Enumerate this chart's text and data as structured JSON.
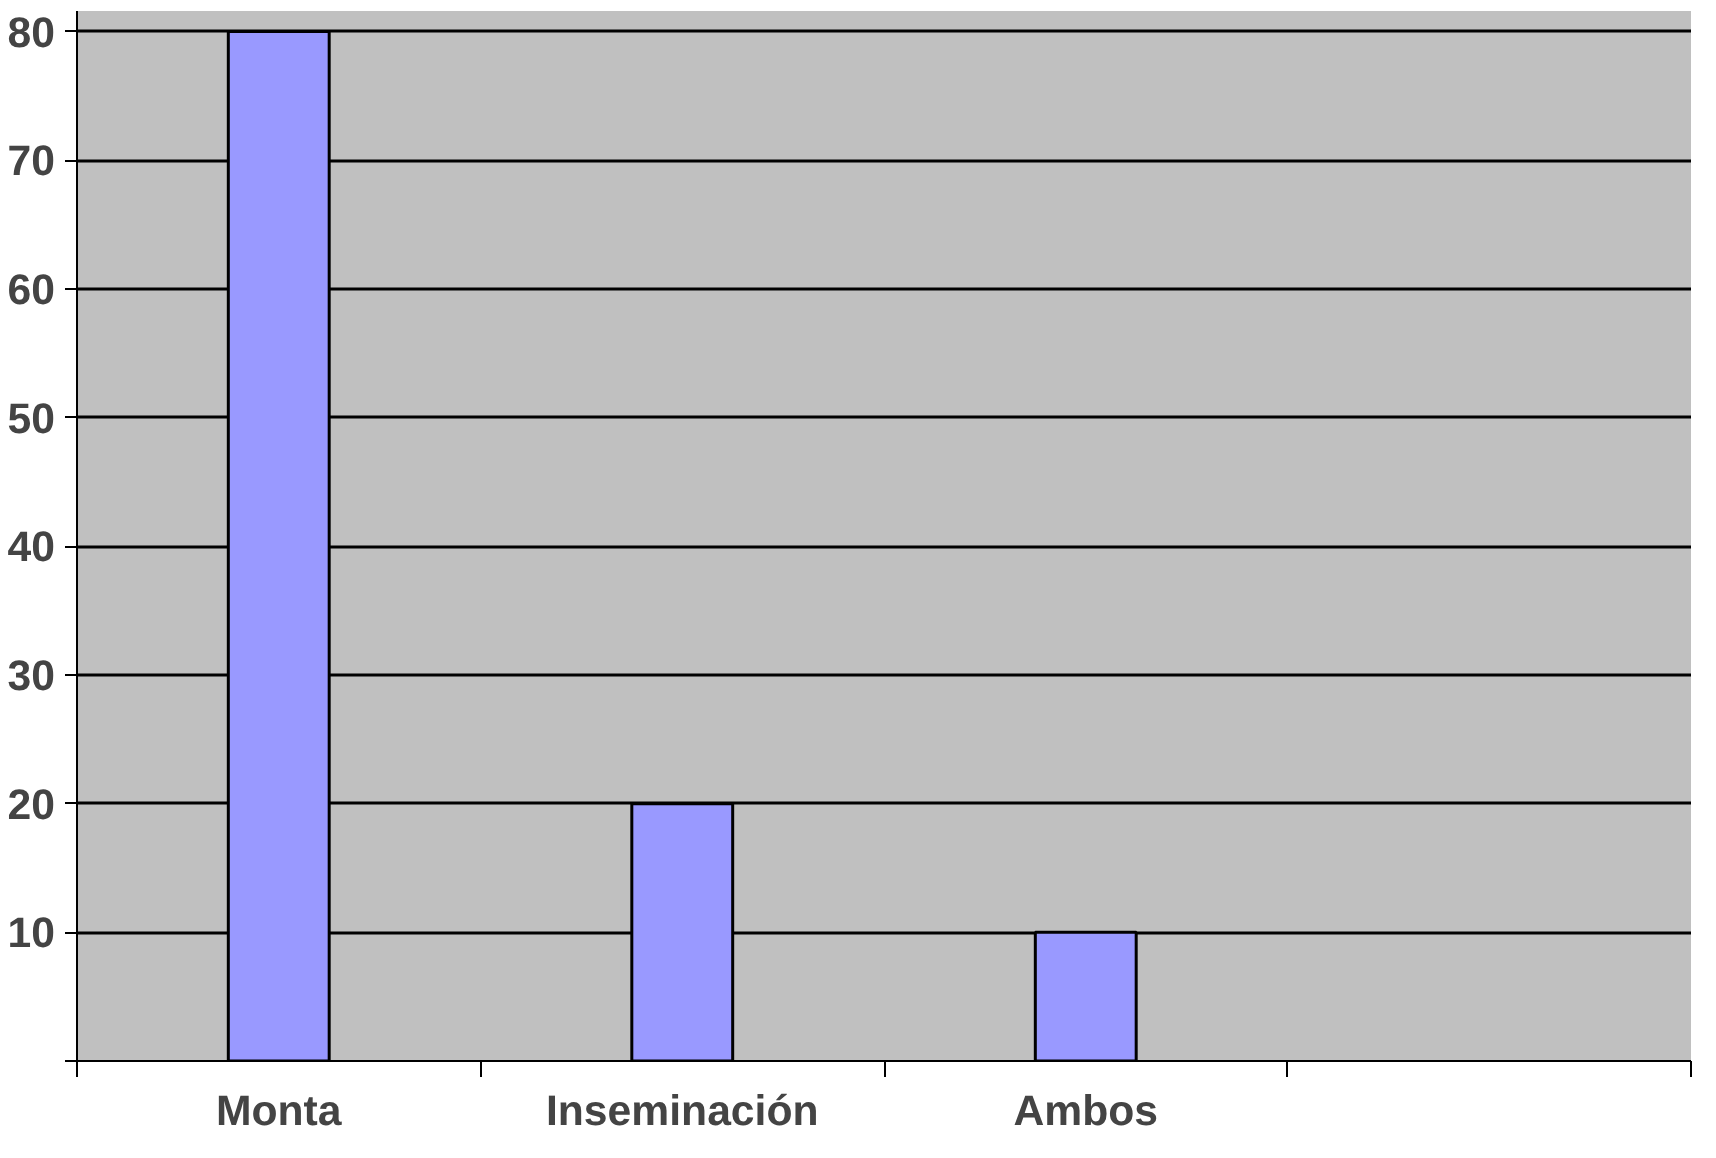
{
  "chart_data": {
    "type": "bar",
    "categories": [
      "Monta",
      "Inseminación",
      "Ambos",
      null
    ],
    "values": [
      80,
      20,
      10,
      null
    ],
    "color": "#9999ff",
    "ylim": [
      0,
      80
    ],
    "yticks": [
      {
        "value": 0,
        "label": null
      },
      10,
      20,
      30,
      40,
      50,
      60,
      70,
      80
    ],
    "grid": "y"
  }
}
